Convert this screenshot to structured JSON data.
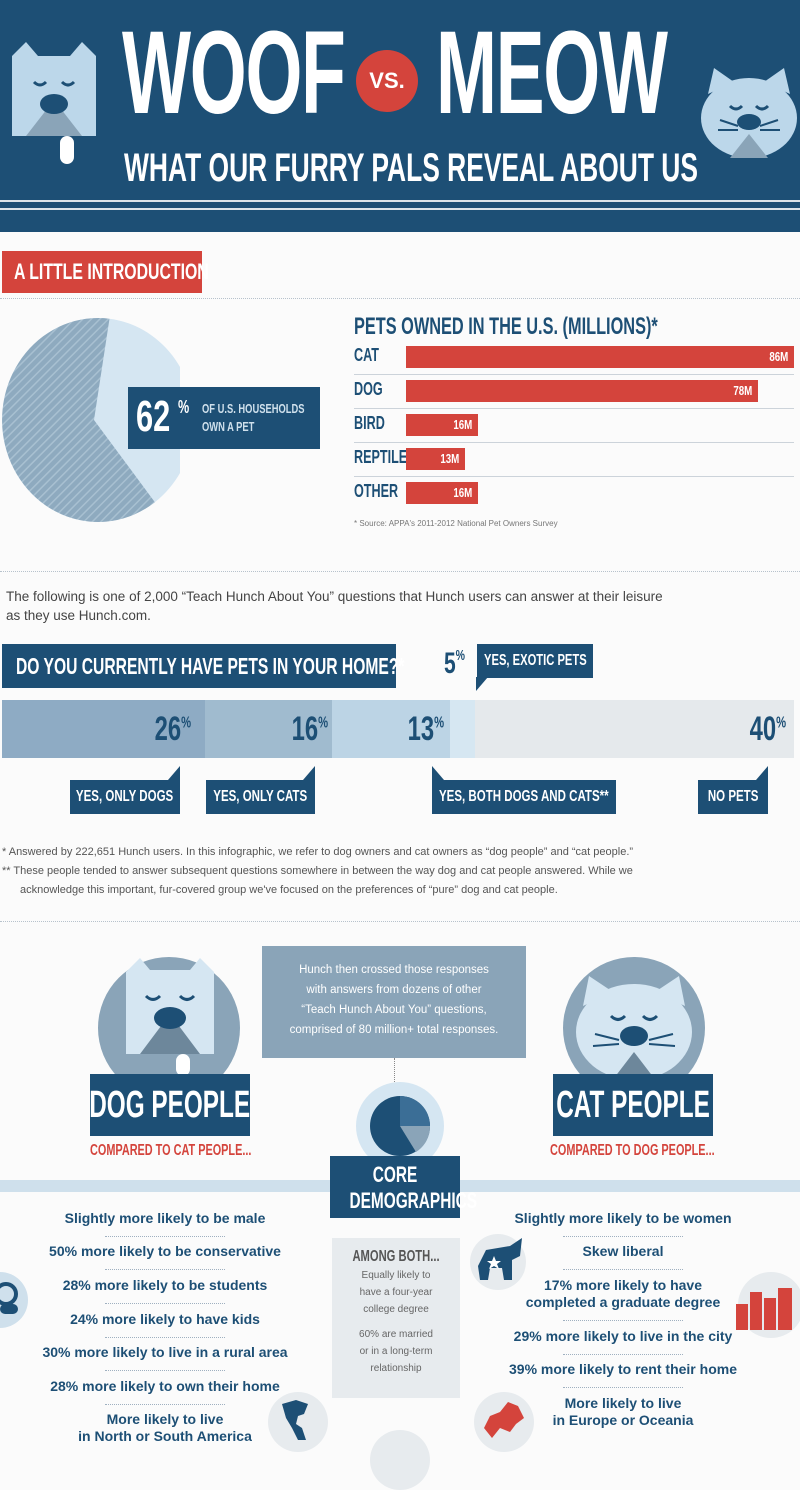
{
  "header": {
    "title_left": "WOOF",
    "vs": "VS.",
    "title_right": "MEOW",
    "subtitle": "WHAT OUR FURRY PALS REVEAL ABOUT US"
  },
  "intro": {
    "label": "A LITTLE INTRODUCTION",
    "pie_percent": "62",
    "pie_percent_sign": "%",
    "pie_caption_1": "OF U.S. HOUSEHOLDS",
    "pie_caption_2": "OWN A PET",
    "bars_title": "PETS OWNED IN THE U.S. (MILLIONS)*",
    "source": "* Source: APPA's 2011-2012 National Pet Owners Survey"
  },
  "chart_data": [
    {
      "type": "pie",
      "labels": [
        "Own a pet",
        "Do not own a pet"
      ],
      "values": [
        62,
        38
      ]
    },
    {
      "type": "bar",
      "title": "PETS OWNED IN THE U.S. (MILLIONS)*",
      "categories": [
        "CAT",
        "DOG",
        "BIRD",
        "REPTILE",
        "OTHER"
      ],
      "values": [
        86,
        78,
        16,
        13,
        16
      ],
      "value_labels": [
        "86M",
        "78M",
        "16M",
        "13M",
        "16M"
      ],
      "xlim": [
        0,
        86
      ]
    },
    {
      "type": "bar",
      "title": "DO YOU CURRENTLY HAVE PETS IN YOUR HOME?*",
      "categories": [
        "YES, ONLY DOGS",
        "YES, ONLY CATS",
        "YES, BOTH DOGS AND CATS**",
        "YES, EXOTIC PETS",
        "NO PETS"
      ],
      "values": [
        26,
        16,
        13,
        5,
        40
      ]
    }
  ],
  "question": {
    "lead_1": "The following is one of 2,000 “Teach Hunch About You” questions that Hunch users can answer at their leisure",
    "lead_2": "as they use Hunch.com.",
    "title": "DO YOU CURRENTLY HAVE PETS IN YOUR HOME?*",
    "exotic_pct": "5",
    "exotic_label": "YES, EXOTIC PETS",
    "pct": [
      "26",
      "16",
      "13",
      "40"
    ],
    "resp_dogs": "YES, ONLY DOGS",
    "resp_cats": "YES, ONLY CATS",
    "resp_both": "YES, BOTH DOGS AND CATS**",
    "resp_none": "NO PETS",
    "note_1": "* Answered by 222,651 Hunch users. In this infographic, we refer to dog owners and cat owners as “dog people” and “cat people.”",
    "note_2a": "** These people tended to answer subsequent questions somewhere in between the way dog and cat people answered. While we",
    "note_2b": "acknowledge this important, fur-covered group we've focused on the preferences of “pure” dog and cat people."
  },
  "people": {
    "crossed_1": "Hunch then crossed those responses",
    "crossed_2": "with answers from dozens of other",
    "crossed_3": "“Teach Hunch About You” questions,",
    "crossed_4": "comprised of 80 million+ total responses.",
    "dog_title": "DOG PEOPLE",
    "dog_sub": "COMPARED TO CAT PEOPLE...",
    "cat_title": "CAT PEOPLE",
    "cat_sub": "COMPARED TO DOG PEOPLE...",
    "core_1": "CORE",
    "core_2": "DEMOGRAPHICS",
    "both_title": "AMONG BOTH...",
    "both_1": "Equally likely to",
    "both_2": "have a four-year",
    "both_3": "college degree",
    "both_4": "60% are married",
    "both_5": "or in a long-term",
    "both_6": "relationship",
    "dog_stats": [
      "Slightly more likely to be male",
      "50% more likely to be conservative",
      "28% more likely to be students",
      "24% more likely to have kids",
      "30% more likely to live in a rural area",
      "28% more likely to own their home",
      "More likely to live",
      "in North or South America"
    ],
    "cat_stats": [
      "Slightly more likely to be women",
      "Skew liberal",
      "17% more likely to have",
      "completed a graduate degree",
      "29% more likely to live in the city",
      "39% more likely to rent their home",
      "More likely to live",
      "in Europe or Oceania"
    ]
  }
}
